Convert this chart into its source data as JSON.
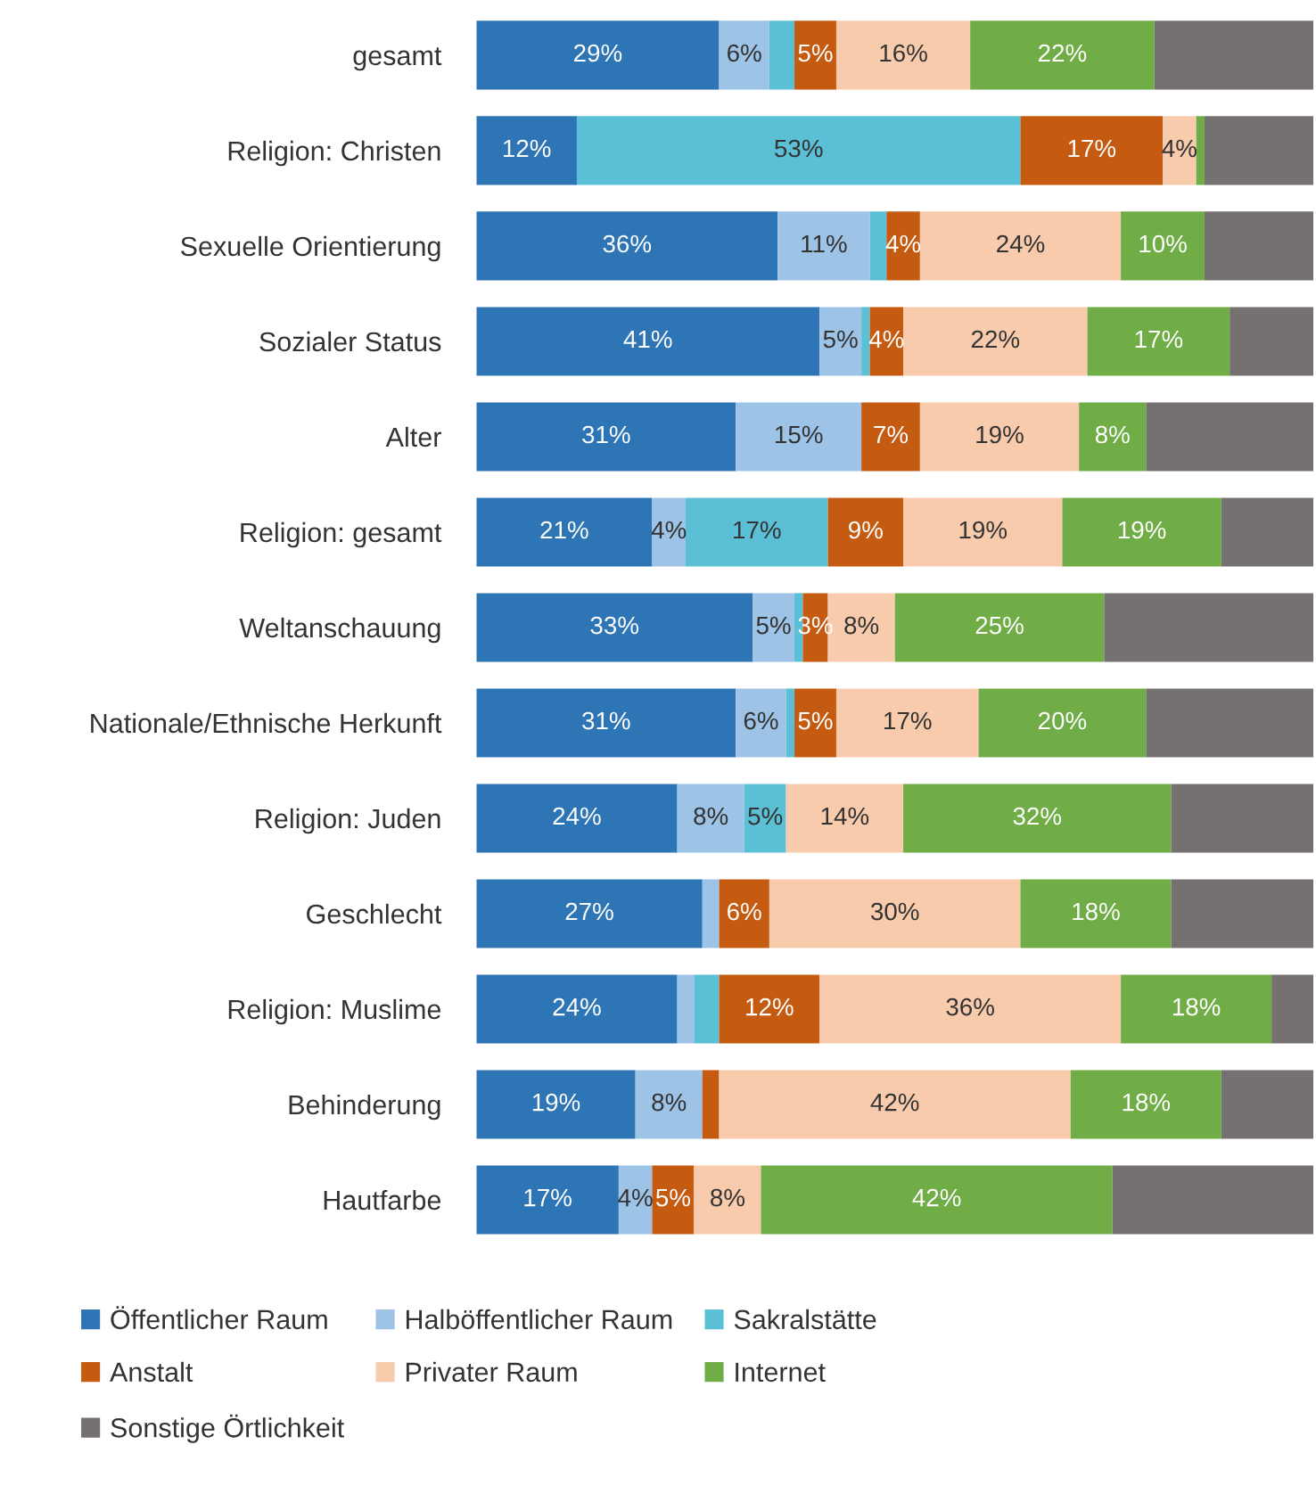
{
  "chart_data": {
    "type": "bar",
    "orientation": "horizontal",
    "stacked": true,
    "xlim": [
      0,
      100
    ],
    "tick_labels": "y",
    "legend": "bottom",
    "grid": false,
    "categories": [
      "gesamt",
      "Religion: Christen",
      "Sexuelle Orientierung",
      "Sozialer Status",
      "Alter",
      "Religion: gesamt",
      "Weltanschauung",
      "Nationale/Ethnische Herkunft",
      "Religion: Juden",
      "Geschlecht",
      "Religion: Muslime",
      "Behinderung",
      "Hautfarbe"
    ],
    "series": [
      {
        "name": "Öffentlicher Raum",
        "color": "#2e75b6",
        "values": [
          29,
          12,
          36,
          41,
          31,
          21,
          33,
          31,
          24,
          27,
          24,
          19,
          17
        ],
        "value_labels": [
          "29%",
          "12%",
          "36%",
          "41%",
          "31%",
          "21%",
          "33%",
          "31%",
          "24%",
          "27%",
          "24%",
          "19%",
          "17%"
        ]
      },
      {
        "name": "Halböffentlicher Raum",
        "color": "#9dc3e6",
        "values": [
          6,
          0,
          11,
          5,
          15,
          4,
          5,
          6,
          8,
          2,
          2,
          8,
          4
        ],
        "value_labels": [
          "6%",
          null,
          "11%",
          "5%",
          "15%",
          "4%",
          "5%",
          "6%",
          "8%",
          null,
          null,
          "8%",
          "4%"
        ]
      },
      {
        "name": "Sakralstätte",
        "color": "#5bc0d6",
        "values": [
          3,
          53,
          2,
          1,
          0,
          17,
          1,
          1,
          5,
          0,
          3,
          0,
          0
        ],
        "value_labels": [
          null,
          "53%",
          null,
          null,
          null,
          "17%",
          null,
          null,
          "5%",
          null,
          null,
          null,
          null
        ]
      },
      {
        "name": "Anstalt",
        "color": "#c55a11",
        "values": [
          5,
          17,
          4,
          4,
          7,
          9,
          3,
          5,
          0,
          6,
          12,
          2,
          5
        ],
        "value_labels": [
          "5%",
          "17%",
          "4%",
          "4%",
          "7%",
          "9%",
          "3%",
          "5%",
          null,
          "6%",
          "12%",
          null,
          "5%"
        ]
      },
      {
        "name": "Privater Raum",
        "color": "#f8cbad",
        "values": [
          16,
          4,
          24,
          22,
          19,
          19,
          8,
          17,
          14,
          30,
          36,
          42,
          8
        ],
        "value_labels": [
          "16%",
          "4%",
          "24%",
          "22%",
          "19%",
          "19%",
          "8%",
          "17%",
          "14%",
          "30%",
          "36%",
          "42%",
          "8%"
        ]
      },
      {
        "name": "Internet",
        "color": "#70ad47",
        "values": [
          22,
          1,
          10,
          17,
          8,
          19,
          25,
          20,
          32,
          18,
          18,
          18,
          42
        ],
        "value_labels": [
          "22%",
          null,
          "10%",
          "17%",
          "8%",
          "19%",
          "25%",
          "20%",
          "32%",
          "18%",
          "18%",
          "18%",
          "42%"
        ]
      },
      {
        "name": "Sonstige Örtlichkeit",
        "color": "#767171",
        "values": [
          19,
          13,
          13,
          10,
          20,
          11,
          25,
          20,
          17,
          17,
          5,
          11,
          24
        ],
        "value_labels": [
          null,
          null,
          null,
          null,
          null,
          null,
          null,
          null,
          null,
          null,
          null,
          null,
          null
        ]
      }
    ]
  }
}
